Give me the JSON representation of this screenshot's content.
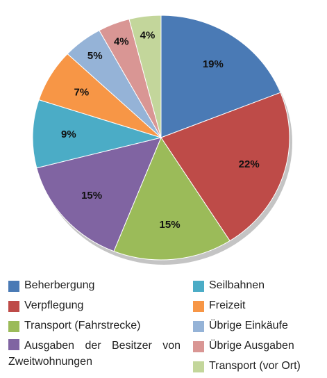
{
  "chart_data": {
    "type": "pie",
    "categories": [
      "Beherbergung",
      "Verpflegung",
      "Transport (Fahrstrecke)",
      "Ausgaben der Besitzer von Zweitwohnungen",
      "Seilbahnen",
      "Freizeit",
      "Übrige Einkäufe",
      "Übrige Ausgaben",
      "Transport (vor Ort)"
    ],
    "values": [
      19,
      22,
      15,
      15,
      9,
      7,
      5,
      4,
      4
    ],
    "value_labels": [
      "19%",
      "22%",
      "15%",
      "15%",
      "9%",
      "7%",
      "5%",
      "4%",
      "4%"
    ],
    "colors": [
      "#4a7ab5",
      "#be4b48",
      "#9bbb59",
      "#8064a2",
      "#4bacc6",
      "#f79646",
      "#95b3d7",
      "#d99694",
      "#c3d69b"
    ]
  }
}
